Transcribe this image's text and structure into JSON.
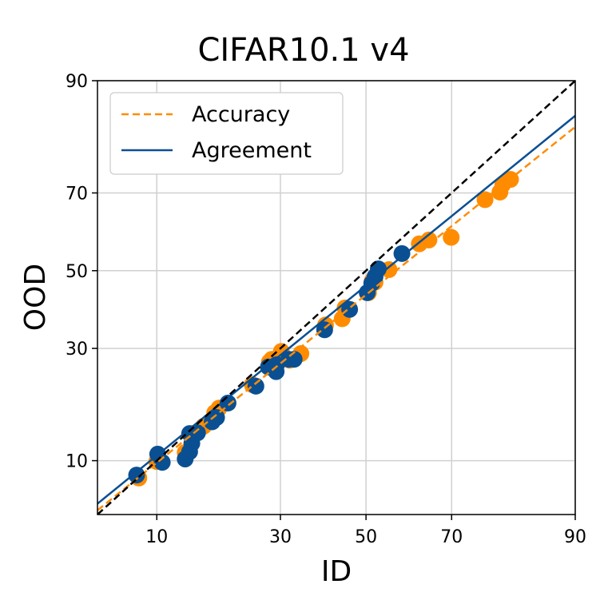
{
  "chart_data": {
    "type": "scatter",
    "title": "CIFAR10.1 v4",
    "xlabel": "ID",
    "ylabel": "OOD",
    "xlim": [
      5,
      90
    ],
    "ylim": [
      5,
      90
    ],
    "scale": "probit",
    "xticks": [
      10,
      30,
      50,
      70,
      90
    ],
    "yticks": [
      10,
      30,
      50,
      70,
      90
    ],
    "xtick_labels": [
      "10",
      "30",
      "50",
      "70",
      "90"
    ],
    "ytick_labels": [
      "10",
      "30",
      "50",
      "70",
      "90"
    ],
    "grid": true,
    "legend_position": "top-left",
    "colors": {
      "accuracy": "#ff8c00",
      "agreement": "#0a4f92",
      "diagonal": "#000000",
      "grid": "#d0d0d0"
    },
    "series": [
      {
        "name": "Accuracy",
        "style": "dashed line with orange markers",
        "fit_line": [
          [
            5,
            5.3
          ],
          [
            90,
            83.4
          ]
        ],
        "points": [
          [
            8.2,
            8.1
          ],
          [
            10.0,
            9.9
          ],
          [
            13.4,
            11.0
          ],
          [
            14.4,
            13.6
          ],
          [
            16.0,
            14.7
          ],
          [
            17.7,
            16.9
          ],
          [
            18.4,
            17.7
          ],
          [
            24.3,
            22.1
          ],
          [
            27.7,
            26.9
          ],
          [
            28.2,
            27.5
          ],
          [
            29.0,
            27.6
          ],
          [
            30.2,
            29.3
          ],
          [
            32.0,
            27.3
          ],
          [
            34.5,
            28.8
          ],
          [
            40.2,
            35.7
          ],
          [
            44.2,
            37.3
          ],
          [
            44.9,
            40.1
          ],
          [
            50.6,
            44.1
          ],
          [
            51.5,
            47.2
          ],
          [
            52.2,
            46.9
          ],
          [
            55.6,
            50.3
          ],
          [
            62.8,
            57.2
          ],
          [
            65.0,
            58.2
          ],
          [
            69.9,
            58.9
          ],
          [
            76.7,
            68.4
          ],
          [
            79.4,
            70.2
          ],
          [
            79.9,
            72.0
          ],
          [
            81.2,
            73.1
          ]
        ]
      },
      {
        "name": "Agreement",
        "style": "solid line with blue markers",
        "fit_line": [
          [
            5,
            5.8
          ],
          [
            90,
            85.2
          ]
        ],
        "points": [
          [
            8.0,
            8.4
          ],
          [
            10.1,
            10.8
          ],
          [
            10.6,
            9.8
          ],
          [
            13.4,
            10.2
          ],
          [
            14.0,
            11.1
          ],
          [
            14.3,
            12.2
          ],
          [
            14.0,
            13.6
          ],
          [
            15.1,
            13.7
          ],
          [
            17.3,
            15.4
          ],
          [
            18.0,
            16.1
          ],
          [
            19.9,
            18.6
          ],
          [
            25.0,
            21.8
          ],
          [
            27.5,
            25.8
          ],
          [
            29.1,
            24.8
          ],
          [
            29.2,
            26.3
          ],
          [
            31.8,
            27.5
          ],
          [
            33.0,
            27.5
          ],
          [
            40.0,
            34.5
          ],
          [
            46.0,
            39.7
          ],
          [
            50.3,
            44.1
          ],
          [
            51.4,
            46.6
          ],
          [
            52.2,
            48.4
          ],
          [
            53.0,
            50.5
          ],
          [
            58.7,
            54.6
          ]
        ]
      }
    ],
    "reference_line": {
      "name": "y = x",
      "style": "black dashed"
    }
  }
}
